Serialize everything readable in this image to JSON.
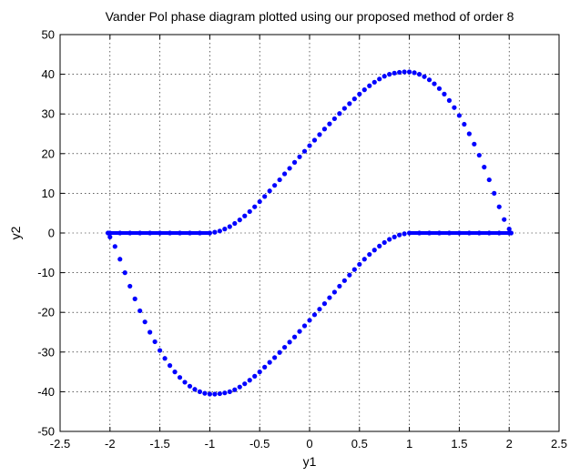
{
  "chart_data": {
    "type": "scatter",
    "title": "Vander Pol phase diagram plotted using our proposed method of order 8",
    "xlabel": "y1",
    "ylabel": "y2",
    "xlim": [
      -2.5,
      2.5
    ],
    "ylim": [
      -50,
      50
    ],
    "xticks": [
      -2.5,
      -2,
      -1.5,
      -1,
      -0.5,
      0,
      0.5,
      1,
      1.5,
      2,
      2.5
    ],
    "yticks": [
      -50,
      -40,
      -30,
      -20,
      -10,
      0,
      10,
      20,
      30,
      40,
      50
    ],
    "xtick_labels": [
      "-2.5",
      "-2",
      "-1.5",
      "-1",
      "-0.5",
      "0",
      "0.5",
      "1",
      "1.5",
      "2",
      "2.5"
    ],
    "ytick_labels": [
      "-50",
      "-40",
      "-30",
      "-20",
      "-10",
      "0",
      "10",
      "20",
      "30",
      "40",
      "50"
    ],
    "grid": true,
    "grid_style": "dotted",
    "marker_color": "#0000ff",
    "series": [
      {
        "points": [
          [
            -2.0,
            0
          ],
          [
            -1.9,
            0
          ],
          [
            -1.8,
            0
          ],
          [
            -1.7,
            0
          ],
          [
            -1.6,
            0
          ],
          [
            -1.5,
            0
          ],
          [
            -1.4,
            0
          ],
          [
            -1.3,
            0
          ],
          [
            -1.2,
            0
          ],
          [
            -1.1,
            0
          ],
          [
            -1.0,
            0
          ],
          [
            -0.95,
            0.2
          ],
          [
            -0.9,
            0.5
          ],
          [
            -0.85,
            1.0
          ],
          [
            -0.8,
            1.6
          ],
          [
            -0.75,
            2.4
          ],
          [
            -0.7,
            3.3
          ],
          [
            -0.65,
            4.3
          ],
          [
            -0.6,
            5.4
          ],
          [
            -0.55,
            6.6
          ],
          [
            -0.5,
            7.9
          ],
          [
            -0.45,
            9.2
          ],
          [
            -0.4,
            10.6
          ],
          [
            -0.35,
            12.0
          ],
          [
            -0.3,
            13.4
          ],
          [
            -0.25,
            14.9
          ],
          [
            -0.2,
            16.3
          ],
          [
            -0.15,
            17.8
          ],
          [
            -0.1,
            19.2
          ],
          [
            -0.05,
            20.6
          ],
          [
            0.0,
            22.0
          ],
          [
            0.05,
            23.4
          ],
          [
            0.1,
            24.8
          ],
          [
            0.15,
            26.2
          ],
          [
            0.2,
            27.5
          ],
          [
            0.25,
            28.8
          ],
          [
            0.3,
            30.1
          ],
          [
            0.35,
            31.4
          ],
          [
            0.4,
            32.6
          ],
          [
            0.45,
            33.8
          ],
          [
            0.5,
            35.0
          ],
          [
            0.55,
            36.1
          ],
          [
            0.6,
            37.1
          ],
          [
            0.65,
            38.0
          ],
          [
            0.7,
            38.8
          ],
          [
            0.75,
            39.5
          ],
          [
            0.8,
            40.0
          ],
          [
            0.85,
            40.3
          ],
          [
            0.9,
            40.5
          ],
          [
            0.95,
            40.6
          ],
          [
            1.0,
            40.6
          ],
          [
            1.05,
            40.4
          ],
          [
            1.1,
            40.0
          ],
          [
            1.15,
            39.4
          ],
          [
            1.2,
            38.6
          ],
          [
            1.25,
            37.6
          ],
          [
            1.3,
            36.4
          ],
          [
            1.35,
            35.0
          ],
          [
            1.4,
            33.4
          ],
          [
            1.45,
            31.6
          ],
          [
            1.5,
            29.6
          ],
          [
            1.55,
            27.4
          ],
          [
            1.6,
            25.0
          ],
          [
            1.65,
            22.4
          ],
          [
            1.7,
            19.6
          ],
          [
            1.75,
            16.6
          ],
          [
            1.8,
            13.4
          ],
          [
            1.85,
            10.0
          ],
          [
            1.9,
            6.6
          ],
          [
            1.95,
            3.4
          ],
          [
            2.0,
            1.0
          ],
          [
            2.02,
            0.0
          ],
          [
            2.0,
            0
          ],
          [
            1.9,
            0
          ],
          [
            1.8,
            0
          ],
          [
            1.7,
            0
          ],
          [
            1.6,
            0
          ],
          [
            1.5,
            0
          ],
          [
            1.4,
            0
          ],
          [
            1.3,
            0
          ],
          [
            1.2,
            0
          ],
          [
            1.1,
            0
          ],
          [
            1.0,
            0
          ],
          [
            0.95,
            -0.2
          ],
          [
            0.9,
            -0.5
          ],
          [
            0.85,
            -1.0
          ],
          [
            0.8,
            -1.6
          ],
          [
            0.75,
            -2.4
          ],
          [
            0.7,
            -3.3
          ],
          [
            0.65,
            -4.3
          ],
          [
            0.6,
            -5.4
          ],
          [
            0.55,
            -6.6
          ],
          [
            0.5,
            -7.9
          ],
          [
            0.45,
            -9.2
          ],
          [
            0.4,
            -10.6
          ],
          [
            0.35,
            -12.0
          ],
          [
            0.3,
            -13.4
          ],
          [
            0.25,
            -14.9
          ],
          [
            0.2,
            -16.3
          ],
          [
            0.15,
            -17.8
          ],
          [
            0.1,
            -19.2
          ],
          [
            0.05,
            -20.6
          ],
          [
            0.0,
            -22.0
          ],
          [
            -0.05,
            -23.4
          ],
          [
            -0.1,
            -24.8
          ],
          [
            -0.15,
            -26.2
          ],
          [
            -0.2,
            -27.5
          ],
          [
            -0.25,
            -28.8
          ],
          [
            -0.3,
            -30.1
          ],
          [
            -0.35,
            -31.4
          ],
          [
            -0.4,
            -32.6
          ],
          [
            -0.45,
            -33.8
          ],
          [
            -0.5,
            -35.0
          ],
          [
            -0.55,
            -36.1
          ],
          [
            -0.6,
            -37.1
          ],
          [
            -0.65,
            -38.0
          ],
          [
            -0.7,
            -38.8
          ],
          [
            -0.75,
            -39.5
          ],
          [
            -0.8,
            -40.0
          ],
          [
            -0.85,
            -40.3
          ],
          [
            -0.9,
            -40.5
          ],
          [
            -0.95,
            -40.6
          ],
          [
            -1.0,
            -40.6
          ],
          [
            -1.05,
            -40.4
          ],
          [
            -1.1,
            -40.0
          ],
          [
            -1.15,
            -39.4
          ],
          [
            -1.2,
            -38.6
          ],
          [
            -1.25,
            -37.6
          ],
          [
            -1.3,
            -36.4
          ],
          [
            -1.35,
            -35.0
          ],
          [
            -1.4,
            -33.4
          ],
          [
            -1.45,
            -31.6
          ],
          [
            -1.5,
            -29.6
          ],
          [
            -1.55,
            -27.4
          ],
          [
            -1.6,
            -25.0
          ],
          [
            -1.65,
            -22.4
          ],
          [
            -1.7,
            -19.6
          ],
          [
            -1.75,
            -16.6
          ],
          [
            -1.8,
            -13.4
          ],
          [
            -1.85,
            -10.0
          ],
          [
            -1.9,
            -6.6
          ],
          [
            -1.95,
            -3.4
          ],
          [
            -2.0,
            -1.0
          ],
          [
            -2.02,
            0.0
          ]
        ]
      }
    ]
  }
}
